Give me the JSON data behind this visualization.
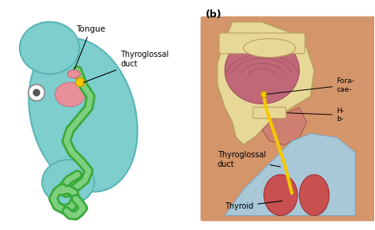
{
  "background_color": "#ffffff",
  "title_b": "(b)",
  "label_tongue": "Tongue",
  "label_thyroglossal_duct_top": "Thyroglossal\nduct",
  "label_thyroglossal_duct_bot": "Thyroglossal\nduct",
  "label_thyroid": "Thyroid",
  "label_foramen": "Fora-\ncae-",
  "label_hyoid": "H-\nb-",
  "embryo_bg_color": "#7ecece",
  "embryo_outline_color": "#3aaa3a",
  "embryo_heart_color": "#e8909a",
  "duct_yellow_color": "#f5c800",
  "tongue_color": "#e8909a",
  "throat_skin_color": "#d4956a",
  "mouth_pink": "#c06878",
  "throat_blue": "#a8c8d8",
  "thyroid_red": "#c85050",
  "bone_color": "#e8d898",
  "figsize": [
    4.74,
    2.91
  ],
  "dpi": 100
}
